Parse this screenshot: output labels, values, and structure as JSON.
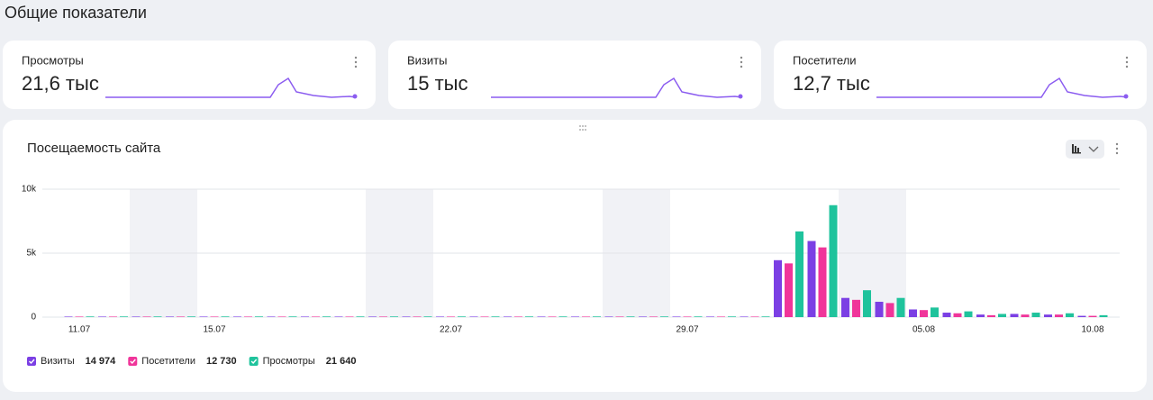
{
  "header": {
    "title": "Общие показатели"
  },
  "cards": [
    {
      "label": "Просмотры",
      "value": "21,6 тыс"
    },
    {
      "label": "Визиты",
      "value": "15 тыс"
    },
    {
      "label": "Посетители",
      "value": "12,7 тыс"
    }
  ],
  "chart_data": {
    "type": "bar",
    "title": "Посещаемость сайта",
    "categories": [
      "11.07",
      null,
      null,
      null,
      "15.07",
      null,
      null,
      null,
      null,
      null,
      null,
      "22.07",
      null,
      null,
      null,
      null,
      null,
      null,
      "29.07",
      null,
      null,
      null,
      null,
      null,
      null,
      "05.08",
      null,
      null,
      null,
      null,
      "10.08"
    ],
    "series": [
      {
        "name": "Визиты",
        "color": "#7b3fe4",
        "total": "14 974",
        "values": [
          40,
          40,
          40,
          40,
          40,
          40,
          40,
          40,
          40,
          40,
          40,
          40,
          40,
          40,
          40,
          40,
          40,
          40,
          40,
          40,
          40,
          4450,
          5950,
          1500,
          1200,
          600,
          350,
          200,
          250,
          200,
          100
        ]
      },
      {
        "name": "Посетители",
        "color": "#f0359a",
        "total": "12 730",
        "values": [
          40,
          40,
          40,
          40,
          40,
          40,
          40,
          40,
          40,
          40,
          40,
          40,
          40,
          40,
          40,
          40,
          40,
          40,
          40,
          40,
          40,
          4200,
          5450,
          1350,
          1100,
          550,
          300,
          150,
          200,
          200,
          100
        ]
      },
      {
        "name": "Просмотры",
        "color": "#1fc39c",
        "total": "21 640",
        "values": [
          50,
          50,
          50,
          50,
          50,
          50,
          50,
          50,
          50,
          50,
          50,
          50,
          50,
          50,
          50,
          50,
          50,
          50,
          50,
          50,
          50,
          6700,
          8750,
          2100,
          1500,
          750,
          450,
          250,
          350,
          300,
          150
        ]
      }
    ],
    "ylim": [
      0,
      10000
    ],
    "yticks": [
      0,
      {
        "value": 5000,
        "label": "5k"
      },
      {
        "value": 10000,
        "label": "10k"
      }
    ],
    "grid": true
  }
}
